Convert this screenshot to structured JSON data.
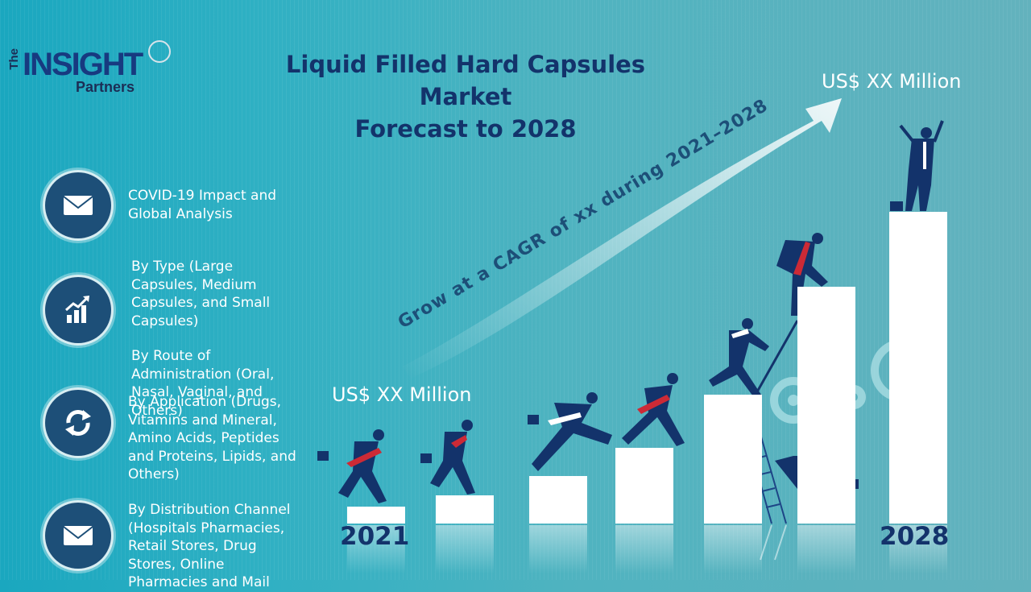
{
  "brand": {
    "the": "The",
    "insight": "INSIGHT",
    "partners": "Partners"
  },
  "title": {
    "line1": "Liquid Filled Hard Capsules Market",
    "line2": "Forecast to 2028"
  },
  "segments": [
    {
      "icon": "envelope-icon",
      "lines": [
        "COVID-19 Impact and",
        "Global Analysis"
      ]
    },
    {
      "icon": "growth-chart-icon",
      "lines": [
        "By Type (Large",
        "Capsules, Medium",
        "Capsules, and Small",
        "Capsules)"
      ]
    },
    {
      "icon": "refresh-icon",
      "lines": [
        "By Route of",
        "Administration (Oral,",
        "Nasal, Vaginal, and",
        "Others)"
      ]
    },
    {
      "icon": "refresh-icon",
      "lines": [
        "By Application (Drugs,",
        "Vitamins and Mineral,",
        "Amino Acids, Peptides",
        "and Proteins, Lipids, and",
        "Others)"
      ]
    },
    {
      "icon": "envelope-icon",
      "lines": [
        "By Distribution Channel",
        "(Hospitals Pharmacies,",
        "Retail Stores, Drug",
        "Stores, Online",
        "Pharmacies and Mail"
      ]
    }
  ],
  "forecast": {
    "start_value": "US$ XX Million",
    "end_value": "US$ XX Million",
    "start_year": "2021",
    "end_year": "2028",
    "cagr_text": "Grow at a CAGR of xx during 2021–2028"
  },
  "colors": {
    "navy": "#13336b",
    "icon_bg": "#1d4f78",
    "bars": "#ffffff"
  }
}
